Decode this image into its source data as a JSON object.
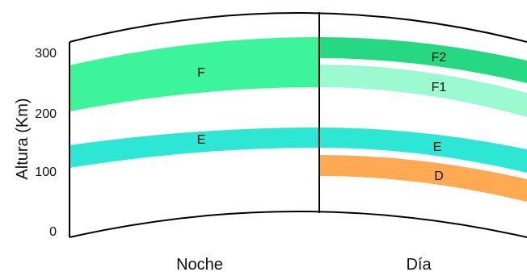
{
  "axis": {
    "title": "Altura (Km)",
    "ticks": [
      "0",
      "100",
      "200",
      "300"
    ]
  },
  "sections": {
    "night": "Noche",
    "day": "Día"
  },
  "layers": {
    "night_f": {
      "label": "F",
      "color": "#3cf59a"
    },
    "night_e": {
      "label": "E",
      "color": "#2ee6d4"
    },
    "day_f2": {
      "label": "F2",
      "color": "#26d882"
    },
    "day_f1": {
      "label": "F1",
      "color": "#9bfad0"
    },
    "day_e": {
      "label": "E",
      "color": "#2ee6d4"
    },
    "day_d": {
      "label": "D",
      "color": "#ffaa52"
    }
  }
}
